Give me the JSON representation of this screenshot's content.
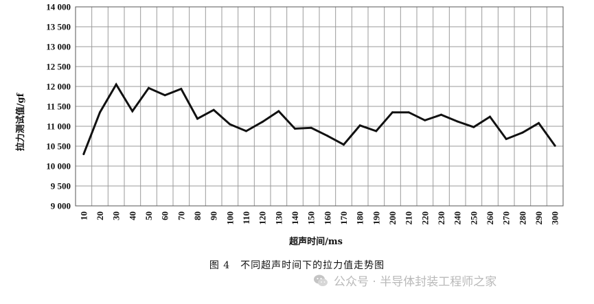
{
  "chart_data": {
    "type": "line",
    "x": [
      10,
      20,
      30,
      40,
      50,
      60,
      70,
      80,
      90,
      100,
      110,
      120,
      130,
      140,
      150,
      160,
      170,
      180,
      190,
      200,
      210,
      220,
      230,
      240,
      250,
      260,
      270,
      280,
      290,
      300
    ],
    "values": [
      10300,
      11350,
      12050,
      11380,
      11960,
      11780,
      11940,
      11190,
      11410,
      11050,
      10880,
      11110,
      11380,
      10940,
      10960,
      10760,
      10540,
      11020,
      10880,
      11350,
      11350,
      11150,
      11290,
      11120,
      10980,
      11240,
      10680,
      10840,
      11080,
      10510
    ],
    "xticks": [
      "10",
      "20",
      "30",
      "40",
      "50",
      "60",
      "70",
      "80",
      "90",
      "100",
      "110",
      "120",
      "130",
      "140",
      "150",
      "160",
      "170",
      "180",
      "190",
      "200",
      "210",
      "220",
      "230",
      "240",
      "250",
      "260",
      "270",
      "280",
      "290",
      "300"
    ],
    "yticks": [
      "9 000",
      "9 500",
      "10 000",
      "10 500",
      "11 000",
      "11 500",
      "12 000",
      "12 500",
      "13 000",
      "13 500",
      "14 000"
    ],
    "ylim": [
      9000,
      14000
    ],
    "xlabel": "超声时间/ms",
    "ylabel": "拉力测试值/gf",
    "grid": true,
    "line_color": "#111111",
    "grid_color": "#9a9a9a"
  },
  "caption": "图 4　不同超声时间下的拉力值走势图",
  "watermark": {
    "text": "公众号 · 半导体封装工程师之家",
    "icon": "wechat-icon"
  }
}
